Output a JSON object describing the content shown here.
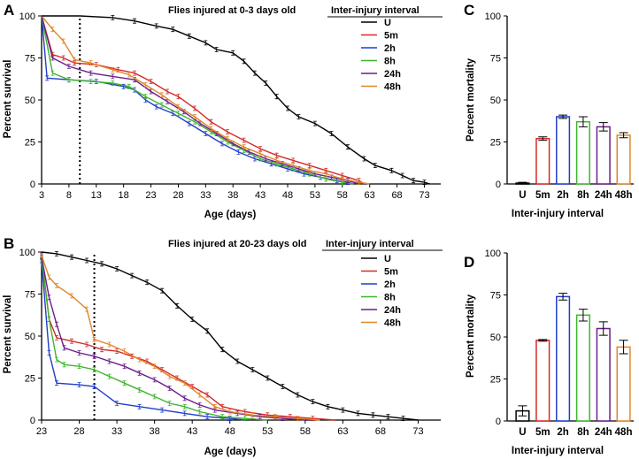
{
  "colors": {
    "U": "#000000",
    "5m": "#d42a2a",
    "2h": "#1f3fc8",
    "8h": "#3fb42f",
    "24h": "#6a1f8a",
    "48h": "#e0862a"
  },
  "chart_data": [
    {
      "panel": "A",
      "type": "line",
      "title": "Flies injured at 0-3 days old",
      "legend_title": "Inter-injury interval",
      "legend_position": "top-right",
      "xlabel": "Age (days)",
      "ylabel": "Percent survival",
      "xlim": [
        3,
        76
      ],
      "ylim": [
        0,
        100
      ],
      "xticks": [
        3,
        8,
        13,
        18,
        23,
        28,
        33,
        38,
        43,
        48,
        53,
        58,
        63,
        68,
        73
      ],
      "yticks": [
        0,
        25,
        50,
        75,
        100
      ],
      "injury_line_x": 10,
      "series": [
        {
          "name": "U",
          "key": "U",
          "points": [
            [
              3,
              100
            ],
            [
              10,
              100
            ],
            [
              16,
              99
            ],
            [
              20,
              97
            ],
            [
              24,
              94
            ],
            [
              27,
              92
            ],
            [
              30,
              88
            ],
            [
              33,
              84
            ],
            [
              35,
              80
            ],
            [
              38,
              78
            ],
            [
              40,
              73
            ],
            [
              42,
              66
            ],
            [
              44,
              60
            ],
            [
              46,
              52
            ],
            [
              48,
              45
            ],
            [
              50,
              40
            ],
            [
              53,
              36
            ],
            [
              56,
              30
            ],
            [
              59,
              22
            ],
            [
              62,
              15
            ],
            [
              64,
              11
            ],
            [
              67,
              8
            ],
            [
              69,
              5
            ],
            [
              71,
              2
            ],
            [
              73,
              1
            ],
            [
              74,
              0
            ]
          ]
        },
        {
          "name": "5m",
          "key": "5m",
          "points": [
            [
              3,
              100
            ],
            [
              5,
              77
            ],
            [
              7,
              75
            ],
            [
              9,
              72
            ],
            [
              13,
              71
            ],
            [
              17,
              68
            ],
            [
              20,
              66
            ],
            [
              23,
              61
            ],
            [
              26,
              55
            ],
            [
              28,
              52
            ],
            [
              31,
              45
            ],
            [
              34,
              37
            ],
            [
              37,
              31
            ],
            [
              40,
              26
            ],
            [
              43,
              21
            ],
            [
              46,
              17
            ],
            [
              49,
              14
            ],
            [
              52,
              11
            ],
            [
              55,
              8
            ],
            [
              58,
              5
            ],
            [
              61,
              2
            ],
            [
              62,
              0
            ]
          ]
        },
        {
          "name": "2h",
          "key": "2h",
          "points": [
            [
              3,
              100
            ],
            [
              4,
              63
            ],
            [
              8,
              62
            ],
            [
              13,
              61
            ],
            [
              18,
              58
            ],
            [
              20,
              56
            ],
            [
              22,
              50
            ],
            [
              24,
              46
            ],
            [
              27,
              42
            ],
            [
              30,
              36
            ],
            [
              33,
              30
            ],
            [
              36,
              24
            ],
            [
              39,
              19
            ],
            [
              42,
              15
            ],
            [
              45,
              12
            ],
            [
              48,
              9
            ],
            [
              51,
              6
            ],
            [
              54,
              4
            ],
            [
              57,
              2
            ],
            [
              59,
              1
            ],
            [
              60,
              0
            ]
          ]
        },
        {
          "name": "8h",
          "key": "8h",
          "points": [
            [
              3,
              100
            ],
            [
              5,
              66
            ],
            [
              8,
              62
            ],
            [
              12,
              61
            ],
            [
              16,
              60
            ],
            [
              19,
              58
            ],
            [
              22,
              52
            ],
            [
              25,
              47
            ],
            [
              28,
              42
            ],
            [
              31,
              37
            ],
            [
              34,
              31
            ],
            [
              37,
              25
            ],
            [
              40,
              20
            ],
            [
              43,
              15
            ],
            [
              46,
              12
            ],
            [
              49,
              9
            ],
            [
              52,
              6
            ],
            [
              55,
              3
            ],
            [
              58,
              1
            ],
            [
              60,
              0
            ]
          ]
        },
        {
          "name": "24h",
          "key": "24h",
          "points": [
            [
              3,
              100
            ],
            [
              5,
              75
            ],
            [
              8,
              70
            ],
            [
              12,
              66
            ],
            [
              16,
              64
            ],
            [
              20,
              62
            ],
            [
              23,
              55
            ],
            [
              26,
              49
            ],
            [
              29,
              43
            ],
            [
              32,
              36
            ],
            [
              35,
              30
            ],
            [
              38,
              24
            ],
            [
              41,
              19
            ],
            [
              44,
              15
            ],
            [
              47,
              12
            ],
            [
              50,
              9
            ],
            [
              53,
              6
            ],
            [
              56,
              4
            ],
            [
              59,
              2
            ],
            [
              61,
              0
            ]
          ]
        },
        {
          "name": "48h",
          "key": "48h",
          "points": [
            [
              3,
              100
            ],
            [
              5,
              92
            ],
            [
              7,
              85
            ],
            [
              9,
              74
            ],
            [
              12,
              72
            ],
            [
              16,
              68
            ],
            [
              19,
              65
            ],
            [
              22,
              59
            ],
            [
              25,
              53
            ],
            [
              28,
              46
            ],
            [
              31,
              40
            ],
            [
              34,
              33
            ],
            [
              37,
              27
            ],
            [
              40,
              22
            ],
            [
              43,
              18
            ],
            [
              46,
              14
            ],
            [
              49,
              11
            ],
            [
              52,
              8
            ],
            [
              55,
              6
            ],
            [
              58,
              3
            ],
            [
              61,
              1
            ],
            [
              63,
              0
            ]
          ]
        }
      ]
    },
    {
      "panel": "B",
      "type": "line",
      "title": "Flies injured at 20-23 days old",
      "legend_title": "Inter-injury interval",
      "legend_position": "top-right",
      "xlabel": "Age (days)",
      "ylabel": "Percent survival",
      "xlim": [
        23,
        76
      ],
      "ylim": [
        0,
        100
      ],
      "xticks": [
        23,
        28,
        33,
        38,
        43,
        48,
        53,
        58,
        63,
        68,
        73
      ],
      "yticks": [
        0,
        25,
        50,
        75,
        100
      ],
      "injury_line_x": 30,
      "series": [
        {
          "name": "U",
          "key": "U",
          "points": [
            [
              23,
              100
            ],
            [
              25,
              99
            ],
            [
              27,
              97
            ],
            [
              29,
              95
            ],
            [
              31,
              93
            ],
            [
              33,
              90
            ],
            [
              35,
              86
            ],
            [
              37,
              82
            ],
            [
              39,
              77
            ],
            [
              41,
              68
            ],
            [
              43,
              60
            ],
            [
              45,
              53
            ],
            [
              47,
              42
            ],
            [
              49,
              35
            ],
            [
              51,
              30
            ],
            [
              53,
              25
            ],
            [
              55,
              20
            ],
            [
              57,
              15
            ],
            [
              59,
              11
            ],
            [
              61,
              8
            ],
            [
              63,
              6
            ],
            [
              65,
              4
            ],
            [
              67,
              3
            ],
            [
              69,
              2
            ],
            [
              71,
              1
            ],
            [
              73,
              0
            ]
          ]
        },
        {
          "name": "5m",
          "key": "5m",
          "points": [
            [
              23,
              98
            ],
            [
              24,
              60
            ],
            [
              25,
              49
            ],
            [
              27,
              47
            ],
            [
              29,
              45
            ],
            [
              31,
              42
            ],
            [
              33,
              41
            ],
            [
              35,
              38
            ],
            [
              37,
              35
            ],
            [
              39,
              30
            ],
            [
              41,
              25
            ],
            [
              43,
              20
            ],
            [
              45,
              15
            ],
            [
              47,
              8
            ],
            [
              50,
              5
            ],
            [
              53,
              3
            ],
            [
              56,
              2
            ],
            [
              59,
              1
            ],
            [
              62,
              0
            ]
          ]
        },
        {
          "name": "2h",
          "key": "2h",
          "points": [
            [
              23,
              95
            ],
            [
              24,
              40
            ],
            [
              25,
              22
            ],
            [
              28,
              21
            ],
            [
              30,
              20
            ],
            [
              33,
              10
            ],
            [
              36,
              8
            ],
            [
              39,
              6
            ],
            [
              42,
              4
            ],
            [
              45,
              2
            ],
            [
              48,
              1
            ],
            [
              50,
              0
            ]
          ]
        },
        {
          "name": "8h",
          "key": "8h",
          "points": [
            [
              23,
              96
            ],
            [
              24,
              60
            ],
            [
              25,
              36
            ],
            [
              26,
              33
            ],
            [
              28,
              32
            ],
            [
              30,
              30
            ],
            [
              32,
              26
            ],
            [
              34,
              22
            ],
            [
              36,
              18
            ],
            [
              38,
              14
            ],
            [
              40,
              10
            ],
            [
              42,
              8
            ],
            [
              44,
              5
            ],
            [
              47,
              2
            ],
            [
              50,
              1
            ],
            [
              53,
              0
            ]
          ]
        },
        {
          "name": "24h",
          "key": "24h",
          "points": [
            [
              23,
              97
            ],
            [
              24,
              73
            ],
            [
              25,
              57
            ],
            [
              26,
              43
            ],
            [
              28,
              40
            ],
            [
              30,
              38
            ],
            [
              32,
              35
            ],
            [
              34,
              32
            ],
            [
              36,
              28
            ],
            [
              38,
              24
            ],
            [
              40,
              19
            ],
            [
              42,
              13
            ],
            [
              44,
              9
            ],
            [
              46,
              6
            ],
            [
              49,
              4
            ],
            [
              52,
              2
            ],
            [
              55,
              1
            ],
            [
              58,
              0
            ]
          ]
        },
        {
          "name": "48h",
          "key": "48h",
          "points": [
            [
              23,
              98
            ],
            [
              24,
              85
            ],
            [
              25,
              80
            ],
            [
              27,
              74
            ],
            [
              29,
              66
            ],
            [
              30,
              48
            ],
            [
              32,
              45
            ],
            [
              34,
              41
            ],
            [
              36,
              36
            ],
            [
              38,
              32
            ],
            [
              40,
              26
            ],
            [
              42,
              22
            ],
            [
              44,
              15
            ],
            [
              46,
              8
            ],
            [
              48,
              5
            ],
            [
              51,
              3
            ],
            [
              54,
              2
            ],
            [
              57,
              1
            ],
            [
              60,
              0
            ]
          ]
        }
      ]
    },
    {
      "panel": "C",
      "type": "bar",
      "xlabel": "Inter-injury interval",
      "ylabel": "Percent mortality",
      "ylim": [
        0,
        100
      ],
      "yticks": [
        0,
        25,
        50,
        75,
        100
      ],
      "categories": [
        "U",
        "5m",
        "2h",
        "8h",
        "24h",
        "48h"
      ],
      "values": [
        0.5,
        27,
        40,
        37,
        34,
        29
      ],
      "errors": [
        0.5,
        1,
        1,
        3,
        2.5,
        1.5
      ]
    },
    {
      "panel": "D",
      "type": "bar",
      "xlabel": "Inter-injury interval",
      "ylabel": "Percent mortality",
      "ylim": [
        0,
        100
      ],
      "yticks": [
        0,
        25,
        50,
        75,
        100
      ],
      "categories": [
        "U",
        "5m",
        "2h",
        "8h",
        "24h",
        "48h"
      ],
      "values": [
        6,
        48,
        74,
        63,
        55,
        44
      ],
      "errors": [
        3,
        0.5,
        2,
        3.5,
        4,
        4
      ]
    }
  ]
}
